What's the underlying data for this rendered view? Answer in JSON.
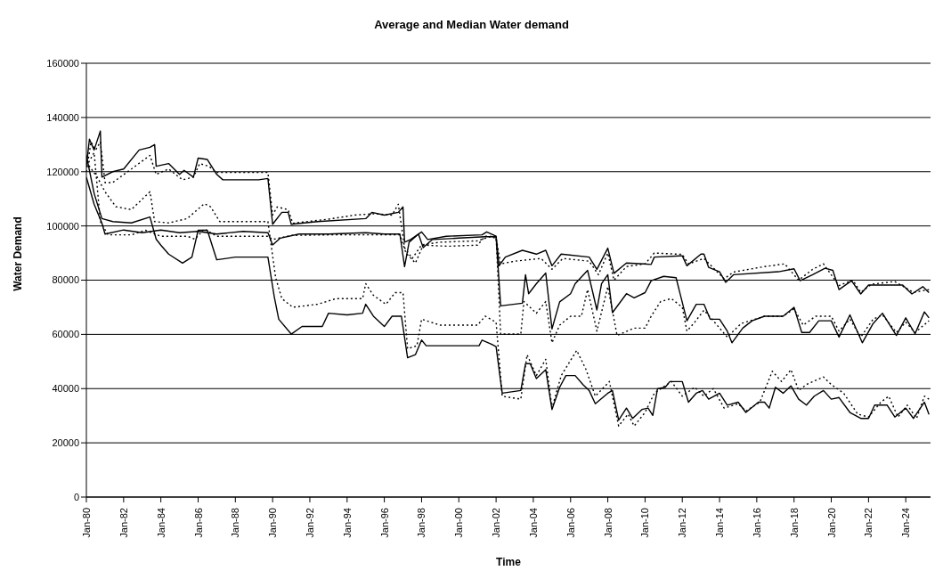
{
  "chart_data": {
    "type": "line",
    "title": "Average and Median Water demand",
    "xlabel": "Time",
    "ylabel": "Water Demand",
    "xlim": [
      "1980-01",
      "2025-05"
    ],
    "xticks": [
      {
        "value": "1980-01",
        "label": "Jan-80"
      },
      {
        "value": "1982-01",
        "label": "Jan-82"
      },
      {
        "value": "1984-01",
        "label": "Jan-84"
      },
      {
        "value": "1986-01",
        "label": "Jan-86"
      },
      {
        "value": "1988-01",
        "label": "Jan-88"
      },
      {
        "value": "1990-01",
        "label": "Jan-90"
      },
      {
        "value": "1992-01",
        "label": "Jan-92"
      },
      {
        "value": "1994-01",
        "label": "Jan-94"
      },
      {
        "value": "1996-01",
        "label": "Jan-96"
      },
      {
        "value": "1998-01",
        "label": "Jan-98"
      },
      {
        "value": "2000-01",
        "label": "Jan-00"
      },
      {
        "value": "2002-01",
        "label": "Jan-02"
      },
      {
        "value": "2004-01",
        "label": "Jan-04"
      },
      {
        "value": "2006-01",
        "label": "Jan-06"
      },
      {
        "value": "2008-01",
        "label": "Jan-08"
      },
      {
        "value": "2010-01",
        "label": "Jan-10"
      },
      {
        "value": "2012-01",
        "label": "Jan-12"
      },
      {
        "value": "2014-01",
        "label": "Jan-14"
      },
      {
        "value": "2016-01",
        "label": "Jan-16"
      },
      {
        "value": "2018-01",
        "label": "Jan-18"
      },
      {
        "value": "2020-01",
        "label": "Jan-20"
      },
      {
        "value": "2022-01",
        "label": "Jan-22"
      },
      {
        "value": "2024-01",
        "label": "Jan-24"
      }
    ],
    "ylim": [
      0,
      160000
    ],
    "yticks": [
      0,
      20000,
      40000,
      60000,
      80000,
      100000,
      120000,
      140000,
      160000
    ],
    "grid": "y",
    "series": [
      {
        "color": "#000000",
        "line_style": "solid",
        "x": [
          "1980-01",
          "1980-03",
          "1980-06",
          "1980-10",
          "1980-11",
          "1981-06",
          "1982-01",
          "1982-11",
          "1983-06",
          "1983-09",
          "1983-10",
          "1984-06",
          "1985-01",
          "1985-04",
          "1985-10",
          "1986-01",
          "1986-07",
          "1987-01",
          "1987-05",
          "1989-04",
          "1989-10",
          "1990-01",
          "1990-07",
          "1990-11",
          "1991-01",
          "1992-06",
          "1995-01",
          "1995-05",
          "1996-01",
          "1996-10",
          "1997-01",
          "1997-02",
          "1997-06",
          "1998-01",
          "1998-05",
          "1999-05",
          "2001-04",
          "2001-07",
          "2002-01",
          "2002-03",
          "2002-07",
          "2003-06",
          "2004-03",
          "2004-09",
          "2005-01",
          "2005-07",
          "2007-01",
          "2007-06",
          "2008-01",
          "2008-05",
          "2009-01",
          "2009-12",
          "2010-05",
          "2010-07",
          "2012-01",
          "2012-04",
          "2013-01",
          "2013-03",
          "2013-06",
          "2014-01",
          "2014-05",
          "2014-10",
          "2017-03",
          "2018-01",
          "2018-05",
          "2019-01",
          "2019-09",
          "2020-02",
          "2020-06",
          "2021-02",
          "2021-08",
          "2022-01",
          "2023-11",
          "2024-05",
          "2024-12",
          "2025-04"
        ],
        "values": [
          122000,
          132000,
          128000,
          135000,
          118000,
          120000,
          121000,
          128000,
          129000,
          130000,
          122000,
          123000,
          119000,
          120500,
          118000,
          125000,
          124500,
          119000,
          117000,
          117000,
          117500,
          100600,
          105000,
          105000,
          100600,
          101600,
          102700,
          105000,
          104000,
          105000,
          107000,
          94000,
          95000,
          97800,
          95000,
          96200,
          96700,
          97800,
          96200,
          85300,
          88500,
          91000,
          89600,
          91000,
          85300,
          89600,
          88500,
          84000,
          91800,
          82500,
          86300,
          86000,
          85800,
          88500,
          89000,
          85300,
          89600,
          89600,
          84700,
          83100,
          79200,
          82000,
          83100,
          84200,
          79800,
          82000,
          84400,
          83600,
          76500,
          79800,
          74900,
          78200,
          78200,
          74900,
          77600,
          75400
        ]
      },
      {
        "color": "#000000",
        "line_style": "dotted",
        "x": [
          "1980-01",
          "1980-04",
          "1980-07",
          "1980-10",
          "1981-01",
          "1981-06",
          "1982-06",
          "1983-06",
          "1983-10",
          "1984-06",
          "1985-03",
          "1985-10",
          "1986-02",
          "1986-08",
          "1987-01",
          "1989-10",
          "1990-01",
          "1990-04",
          "1990-11",
          "1991-02",
          "1993-01",
          "1994-06",
          "1995-06",
          "1996-06",
          "1996-10",
          "1997-02",
          "1997-07",
          "1998-01",
          "1999-01",
          "2001-01",
          "2001-09",
          "2002-01",
          "2002-04",
          "2003-01",
          "2004-06",
          "2005-01",
          "2005-08",
          "2007-01",
          "2007-07",
          "2008-01",
          "2008-05",
          "2009-01",
          "2010-01",
          "2010-07",
          "2012-01",
          "2012-05",
          "2013-03",
          "2014-04",
          "2014-10",
          "2016-06",
          "2017-07",
          "2018-04",
          "2019-01",
          "2019-08",
          "2020-06",
          "2021-03",
          "2021-08",
          "2022-03",
          "2023-06",
          "2024-06",
          "2025-04"
        ],
        "values": [
          120000,
          131000,
          128000,
          131000,
          116000,
          116000,
          121000,
          126000,
          119000,
          121000,
          117000,
          118000,
          123000,
          122000,
          119700,
          119700,
          104000,
          107000,
          106000,
          101000,
          102500,
          104000,
          104500,
          104000,
          108000,
          92000,
          88000,
          93000,
          94000,
          94500,
          96000,
          95500,
          86000,
          87000,
          88000,
          84000,
          88000,
          87000,
          82000,
          90000,
          80000,
          85000,
          86000,
          90000,
          89500,
          86000,
          88000,
          80500,
          83000,
          85000,
          86000,
          80000,
          84000,
          86000,
          78000,
          80000,
          75500,
          78500,
          79500,
          75500,
          76500
        ]
      },
      {
        "color": "#000000",
        "line_style": "solid",
        "x": [
          "1980-01",
          "1980-06",
          "1980-11",
          "1981-01",
          "1982-01",
          "1983-01",
          "1984-01",
          "1985-01",
          "1986-01",
          "1987-01",
          "1988-06",
          "1989-10",
          "1990-01",
          "1990-06",
          "1991-06",
          "1993-01",
          "1995-01",
          "1996-01",
          "1996-11",
          "1997-02",
          "1997-05",
          "1997-11",
          "1998-02",
          "1998-08",
          "2000-01",
          "2001-06",
          "2002-01",
          "2002-04",
          "2003-06",
          "2003-08",
          "2003-10",
          "2004-03",
          "2004-09",
          "2005-01",
          "2005-06",
          "2006-01",
          "2006-04",
          "2006-12",
          "2007-06",
          "2007-09",
          "2008-01",
          "2008-04",
          "2009-01",
          "2009-06",
          "2010-01",
          "2010-05",
          "2011-01",
          "2011-09",
          "2012-04",
          "2012-10",
          "2013-03",
          "2013-07",
          "2014-01",
          "2014-06",
          "2014-09",
          "2015-04",
          "2015-10",
          "2016-06",
          "2017-06",
          "2018-01",
          "2018-06",
          "2018-11",
          "2019-05",
          "2020-01",
          "2020-06",
          "2021-01",
          "2021-09",
          "2022-04",
          "2022-10",
          "2023-07",
          "2024-01",
          "2024-07",
          "2025-01",
          "2025-04"
        ],
        "values": [
          118000,
          108000,
          101000,
          97000,
          98500,
          97500,
          98500,
          97500,
          98000,
          97000,
          98000,
          97500,
          93000,
          95500,
          97000,
          97000,
          97500,
          97000,
          97000,
          85000,
          94000,
          97000,
          92000,
          95000,
          95500,
          96000,
          96000,
          70500,
          71500,
          82000,
          75000,
          78700,
          82600,
          62000,
          72000,
          75000,
          78700,
          83600,
          69000,
          78700,
          82000,
          68000,
          75000,
          73500,
          75400,
          79800,
          81400,
          80900,
          65000,
          71100,
          71100,
          65600,
          65600,
          61200,
          56900,
          62300,
          65000,
          66700,
          66700,
          70000,
          60700,
          60700,
          65000,
          65000,
          59000,
          67200,
          56900,
          64000,
          67800,
          59600,
          66100,
          60200,
          68300,
          66100
        ]
      },
      {
        "color": "#000000",
        "line_style": "dotted",
        "x": [
          "1980-01",
          "1980-06",
          "1980-10",
          "1981-03",
          "1982-06",
          "1983-03",
          "1984-01",
          "1985-06",
          "1985-11",
          "1986-05",
          "1987-01",
          "1989-10",
          "1990-01",
          "1991-01",
          "1993-01",
          "1995-01",
          "1996-11",
          "1997-03",
          "1997-09",
          "1998-02",
          "1999-06",
          "2001-01",
          "2001-06",
          "2002-01",
          "2002-04",
          "2003-05",
          "2003-07",
          "2004-03",
          "2004-09",
          "2005-01",
          "2005-06",
          "2006-01",
          "2006-08",
          "2006-12",
          "2007-06",
          "2008-01",
          "2008-07",
          "2009-06",
          "2010-01",
          "2010-05",
          "2010-11",
          "2011-06",
          "2012-01",
          "2012-04",
          "2012-09",
          "2013-03",
          "2013-09",
          "2014-06",
          "2015-03",
          "2016-06",
          "2017-06",
          "2018-01",
          "2018-07",
          "2019-03",
          "2020-01",
          "2020-06",
          "2021-01",
          "2021-08",
          "2022-04",
          "2022-10",
          "2023-07",
          "2024-01",
          "2024-07",
          "2025-04"
        ],
        "values": [
          122000,
          127000,
          101600,
          96700,
          96700,
          98400,
          96200,
          96200,
          95100,
          98900,
          96200,
          96200,
          95000,
          96500,
          96700,
          96700,
          96700,
          90000,
          86300,
          92900,
          92500,
          92900,
          96200,
          96000,
          60100,
          60100,
          72100,
          67800,
          72100,
          56900,
          63400,
          66700,
          66700,
          76500,
          61200,
          77600,
          59600,
          62300,
          62300,
          66700,
          72100,
          73200,
          70000,
          61200,
          64500,
          68900,
          65000,
          59000,
          64000,
          66700,
          66700,
          69400,
          63400,
          66700,
          66700,
          61200,
          65600,
          59000,
          65600,
          67200,
          60700,
          64500,
          60700,
          65000
        ]
      },
      {
        "color": "#000000",
        "line_style": "solid",
        "x": [
          "1980-01",
          "1980-06",
          "1980-11",
          "1981-06",
          "1982-06",
          "1983-06",
          "1983-10",
          "1984-01",
          "1984-06",
          "1985-03",
          "1985-09",
          "1986-01",
          "1986-07",
          "1987-01",
          "1988-01",
          "1989-10",
          "1990-02",
          "1990-05",
          "1991-01",
          "1991-08",
          "1992-09",
          "1993-01",
          "1994-01",
          "1994-11",
          "1995-01",
          "1995-06",
          "1996-01",
          "1996-06",
          "1996-12",
          "1997-04",
          "1997-09",
          "1998-01",
          "1998-04",
          "2000-01",
          "2001-02",
          "2001-04",
          "2001-10",
          "2002-01",
          "2002-05",
          "2003-05",
          "2003-08",
          "2003-11",
          "2004-03",
          "2004-09",
          "2005-01",
          "2005-06",
          "2005-10",
          "2006-04",
          "2006-09",
          "2007-01",
          "2007-05",
          "2008-01",
          "2008-04",
          "2008-08",
          "2009-01",
          "2009-05",
          "2009-11",
          "2010-03",
          "2010-06",
          "2010-09",
          "2011-02",
          "2011-05",
          "2012-01",
          "2012-05",
          "2012-10",
          "2013-02",
          "2013-06",
          "2014-01",
          "2014-06",
          "2015-01",
          "2015-06",
          "2016-02",
          "2016-06",
          "2016-09",
          "2017-01",
          "2017-06",
          "2017-11",
          "2018-04",
          "2018-09",
          "2019-02",
          "2019-08",
          "2020-01",
          "2020-06",
          "2021-01",
          "2021-08",
          "2022-01",
          "2022-05",
          "2023-01",
          "2023-06",
          "2024-01",
          "2024-06",
          "2025-01",
          "2025-04"
        ],
        "values": [
          126000,
          112000,
          102700,
          101600,
          101100,
          103300,
          95100,
          92900,
          89600,
          86300,
          88500,
          98400,
          98400,
          87500,
          88500,
          88500,
          74000,
          65600,
          60100,
          62900,
          62900,
          67800,
          67200,
          67800,
          71100,
          66700,
          62900,
          66700,
          66700,
          51400,
          52500,
          57900,
          55800,
          55800,
          55800,
          57900,
          56400,
          55500,
          38300,
          39300,
          49200,
          49200,
          43700,
          47000,
          32300,
          40500,
          44800,
          44800,
          41500,
          39300,
          34400,
          38300,
          39300,
          28400,
          32800,
          29000,
          32300,
          32800,
          30100,
          39900,
          40500,
          42600,
          42600,
          35000,
          38300,
          39300,
          36100,
          38300,
          33900,
          35000,
          31200,
          35000,
          35000,
          32800,
          40500,
          38300,
          41000,
          36100,
          33900,
          37200,
          39300,
          36100,
          36700,
          31200,
          29000,
          29000,
          33900,
          33900,
          29500,
          32800,
          29000,
          35000,
          30500
        ]
      },
      {
        "color": "#000000",
        "line_style": "dotted",
        "x": [
          "1980-01",
          "1980-08",
          "1981-01",
          "1981-08",
          "1982-06",
          "1983-06",
          "1983-09",
          "1984-06",
          "1985-06",
          "1986-05",
          "1986-09",
          "1987-03",
          "1989-10",
          "1990-03",
          "1990-07",
          "1991-02",
          "1992-06",
          "1993-06",
          "1994-11",
          "1995-01",
          "1995-06",
          "1996-02",
          "1996-08",
          "1997-01",
          "1997-04",
          "1997-10",
          "1998-01",
          "1999-01",
          "2001-01",
          "2001-06",
          "2002-01",
          "2002-05",
          "2003-05",
          "2003-09",
          "2004-03",
          "2004-09",
          "2005-01",
          "2005-07",
          "2006-02",
          "2006-05",
          "2006-11",
          "2007-05",
          "2008-02",
          "2008-08",
          "2009-02",
          "2009-06",
          "2010-01",
          "2010-07",
          "2011-06",
          "2012-01",
          "2012-09",
          "2013-03",
          "2013-09",
          "2014-04",
          "2015-01",
          "2015-06",
          "2016-03",
          "2016-11",
          "2017-05",
          "2017-11",
          "2018-04",
          "2018-09",
          "2019-08",
          "2020-01",
          "2020-09",
          "2021-06",
          "2022-01",
          "2022-09",
          "2023-02",
          "2023-08",
          "2024-02",
          "2024-08",
          "2025-01",
          "2025-04"
        ],
        "values": [
          123600,
          118000,
          112600,
          107100,
          106000,
          112600,
          101600,
          101100,
          102700,
          108200,
          107100,
          101600,
          101600,
          80900,
          73200,
          70000,
          71100,
          73200,
          73200,
          78700,
          74400,
          71100,
          75400,
          75400,
          54700,
          55800,
          65600,
          63400,
          63400,
          66700,
          64500,
          37200,
          36100,
          52500,
          44800,
          50800,
          32800,
          44800,
          51400,
          54100,
          47000,
          37200,
          42600,
          26200,
          30600,
          26200,
          31200,
          38300,
          42600,
          37200,
          40500,
          37200,
          40000,
          32800,
          34400,
          31700,
          35000,
          46400,
          42600,
          47000,
          39300,
          41500,
          44300,
          41500,
          38300,
          30600,
          29500,
          35000,
          37200,
          29500,
          33900,
          29000,
          37200,
          36100
        ]
      }
    ]
  }
}
